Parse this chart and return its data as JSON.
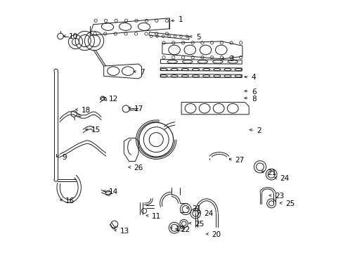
{
  "bg_color": "#ffffff",
  "line_color": "#1a1a1a",
  "lw": 0.7,
  "fs": 7.5,
  "labels": [
    {
      "n": "1",
      "pt": [
        0.488,
        0.918
      ],
      "txt": [
        0.51,
        0.924
      ]
    },
    {
      "n": "2",
      "pt": [
        0.798,
        0.488
      ],
      "txt": [
        0.822,
        0.483
      ]
    },
    {
      "n": "3",
      "pt": [
        0.688,
        0.77
      ],
      "txt": [
        0.712,
        0.768
      ]
    },
    {
      "n": "4",
      "pt": [
        0.778,
        0.698
      ],
      "txt": [
        0.8,
        0.694
      ]
    },
    {
      "n": "5",
      "pt": [
        0.56,
        0.858
      ],
      "txt": [
        0.58,
        0.855
      ]
    },
    {
      "n": "6",
      "pt": [
        0.778,
        0.642
      ],
      "txt": [
        0.8,
        0.638
      ]
    },
    {
      "n": "7",
      "pt": [
        0.338,
        0.72
      ],
      "txt": [
        0.358,
        0.714
      ]
    },
    {
      "n": "8",
      "pt": [
        0.778,
        0.614
      ],
      "txt": [
        0.8,
        0.61
      ]
    },
    {
      "n": "9",
      "pt": [
        0.034,
        0.382
      ],
      "txt": [
        0.05,
        0.378
      ]
    },
    {
      "n": "10",
      "pt": [
        0.06,
        0.86
      ],
      "txt": [
        0.076,
        0.858
      ]
    },
    {
      "n": "11",
      "pt": [
        0.388,
        0.148
      ],
      "txt": [
        0.404,
        0.143
      ]
    },
    {
      "n": "12",
      "pt": [
        0.218,
        0.614
      ],
      "txt": [
        0.234,
        0.61
      ]
    },
    {
      "n": "13",
      "pt": [
        0.262,
        0.09
      ],
      "txt": [
        0.278,
        0.085
      ]
    },
    {
      "n": "14",
      "pt": [
        0.218,
        0.245
      ],
      "txt": [
        0.235,
        0.24
      ]
    },
    {
      "n": "15",
      "pt": [
        0.148,
        0.49
      ],
      "txt": [
        0.164,
        0.485
      ]
    },
    {
      "n": "16",
      "pt": [
        0.046,
        0.21
      ],
      "txt": [
        0.062,
        0.205
      ]
    },
    {
      "n": "17",
      "pt": [
        0.318,
        0.575
      ],
      "txt": [
        0.334,
        0.57
      ]
    },
    {
      "n": "18",
      "pt": [
        0.108,
        0.568
      ],
      "txt": [
        0.124,
        0.564
      ]
    },
    {
      "n": "19",
      "pt": [
        0.484,
        0.1
      ],
      "txt": [
        0.5,
        0.094
      ]
    },
    {
      "n": "20",
      "pt": [
        0.626,
        0.075
      ],
      "txt": [
        0.642,
        0.07
      ]
    },
    {
      "n": "21",
      "pt": [
        0.548,
        0.178
      ],
      "txt": [
        0.564,
        0.173
      ]
    },
    {
      "n": "21",
      "pt": [
        0.846,
        0.322
      ],
      "txt": [
        0.862,
        0.317
      ]
    },
    {
      "n": "22",
      "pt": [
        0.504,
        0.095
      ],
      "txt": [
        0.52,
        0.09
      ]
    },
    {
      "n": "23",
      "pt": [
        0.876,
        0.228
      ],
      "txt": [
        0.892,
        0.223
      ]
    },
    {
      "n": "24",
      "pt": [
        0.596,
        0.16
      ],
      "txt": [
        0.612,
        0.155
      ]
    },
    {
      "n": "24",
      "pt": [
        0.898,
        0.298
      ],
      "txt": [
        0.914,
        0.293
      ]
    },
    {
      "n": "25",
      "pt": [
        0.558,
        0.118
      ],
      "txt": [
        0.574,
        0.113
      ]
    },
    {
      "n": "25",
      "pt": [
        0.918,
        0.198
      ],
      "txt": [
        0.934,
        0.193
      ]
    },
    {
      "n": "26",
      "pt": [
        0.318,
        0.34
      ],
      "txt": [
        0.334,
        0.335
      ]
    },
    {
      "n": "27",
      "pt": [
        0.718,
        0.372
      ],
      "txt": [
        0.734,
        0.367
      ]
    }
  ]
}
